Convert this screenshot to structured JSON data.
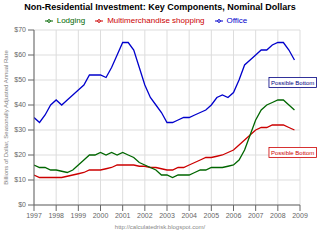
{
  "chart_data": {
    "type": "line",
    "title": "Non-Residential Investment: Key Components, Nominal Dollars",
    "ylabel": "Billions of Dollar, Seasonally Adjusted Annual Rate",
    "watermark": "http://calculatedrisk.blogspot.com/",
    "legend": "top",
    "grid": true,
    "xlim": [
      1997,
      2009
    ],
    "xticks": [
      1997,
      1998,
      1999,
      2000,
      2001,
      2002,
      2003,
      2004,
      2005,
      2006,
      2007,
      2008,
      2009
    ],
    "ylim": [
      0,
      70
    ],
    "yticks": [
      {
        "value": 0,
        "label": "$0"
      },
      {
        "value": 10,
        "label": "$10"
      },
      {
        "value": 20,
        "label": "$20"
      },
      {
        "value": 30,
        "label": "$30"
      },
      {
        "value": 40,
        "label": "$40"
      },
      {
        "value": 50,
        "label": "$50"
      },
      {
        "value": 60,
        "label": "$60"
      },
      {
        "value": 70,
        "label": "$70"
      }
    ],
    "x": [
      1997.0,
      1997.25,
      1997.5,
      1997.75,
      1998.0,
      1998.25,
      1998.5,
      1998.75,
      1999.0,
      1999.25,
      1999.5,
      1999.75,
      2000.0,
      2000.25,
      2000.5,
      2000.75,
      2001.0,
      2001.25,
      2001.5,
      2001.75,
      2002.0,
      2002.25,
      2002.5,
      2002.75,
      2003.0,
      2003.25,
      2003.5,
      2003.75,
      2004.0,
      2004.25,
      2004.5,
      2004.75,
      2005.0,
      2005.25,
      2005.5,
      2005.75,
      2006.0,
      2006.25,
      2006.5,
      2006.75,
      2007.0,
      2007.25,
      2007.5,
      2007.75,
      2008.0,
      2008.25,
      2008.5,
      2008.75
    ],
    "series": [
      {
        "name": "Office",
        "color": "#0000cc",
        "values": [
          35,
          33,
          36,
          40,
          42,
          40,
          42,
          44,
          46,
          48,
          52,
          52,
          52,
          51,
          55,
          60,
          65,
          65,
          62,
          55,
          48,
          43,
          40,
          37,
          33,
          33,
          34,
          35,
          35,
          36,
          37,
          38,
          40,
          43,
          44,
          43,
          45,
          50,
          56,
          58,
          60,
          62,
          62,
          64,
          65,
          65,
          62,
          58
        ]
      },
      {
        "name": "Multimerchandise shopping",
        "color": "#cc0000",
        "values": [
          12,
          11,
          11,
          11,
          11,
          11,
          11.5,
          12,
          12.5,
          13,
          14,
          14,
          14,
          14.5,
          15,
          16,
          16,
          16,
          16,
          15.5,
          15.5,
          15,
          15,
          14.5,
          14,
          14,
          15,
          15,
          16,
          17,
          18,
          19,
          19,
          19.5,
          20,
          21,
          22,
          24,
          26,
          28,
          30,
          31,
          31,
          32,
          32,
          32,
          31,
          30
        ]
      },
      {
        "name": "Lodging",
        "color": "#006600",
        "values": [
          16,
          15,
          15,
          14,
          14,
          13.5,
          13,
          14,
          16,
          18,
          20,
          20,
          21,
          20,
          21,
          20,
          21,
          20,
          19,
          17,
          16,
          15,
          14,
          12,
          12,
          11,
          12,
          12,
          12,
          13,
          14,
          14,
          15,
          15,
          15,
          15.5,
          16,
          18,
          22,
          28,
          34,
          38,
          40,
          41,
          42,
          42,
          40,
          38
        ]
      }
    ],
    "annotations": [
      {
        "text": "Possible Bottom",
        "x": 2007.6,
        "y": 47,
        "color": "#000080"
      },
      {
        "text": "Possible Bottom",
        "x": 2007.6,
        "y": 19,
        "color": "#cc0000"
      }
    ]
  }
}
